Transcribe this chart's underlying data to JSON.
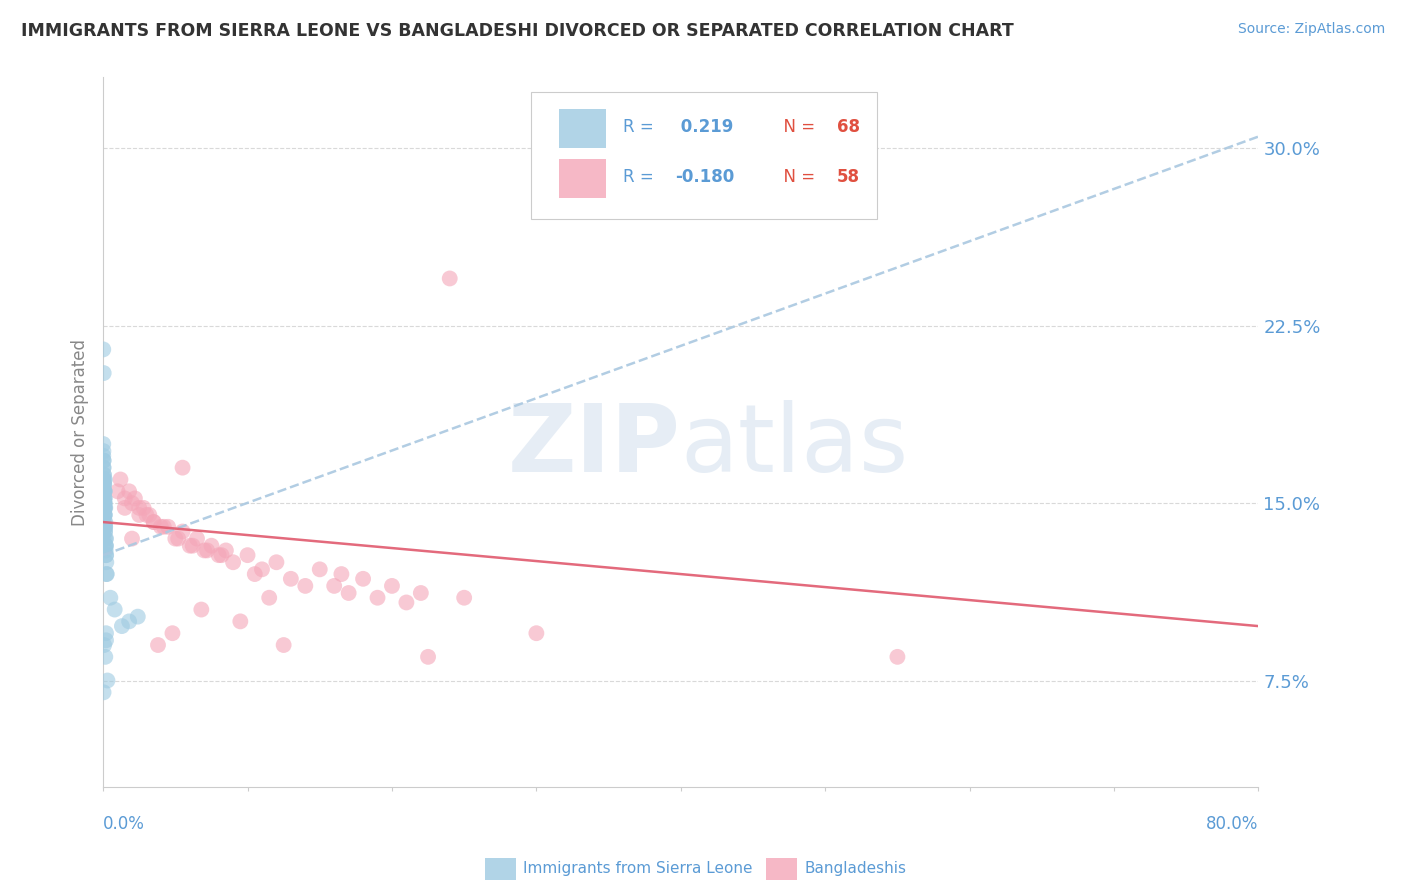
{
  "title": "IMMIGRANTS FROM SIERRA LEONE VS BANGLADESHI DIVORCED OR SEPARATED CORRELATION CHART",
  "source": "Source: ZipAtlas.com",
  "ylabel": "Divorced or Separated",
  "xlim": [
    0.0,
    80.0
  ],
  "ylim": [
    3.0,
    33.0
  ],
  "yticks": [
    7.5,
    15.0,
    22.5,
    30.0
  ],
  "ytick_labels": [
    "7.5%",
    "15.0%",
    "22.5%",
    "30.0%"
  ],
  "watermark_zip": "ZIP",
  "watermark_atlas": "atlas",
  "legend_r1_label": "R = ",
  "legend_r1_val": " 0.219",
  "legend_n1_label": "N = ",
  "legend_n1_val": "68",
  "legend_r2_label": "R = ",
  "legend_r2_val": "-0.180",
  "legend_n2_label": "N = ",
  "legend_n2_val": "58",
  "blue_color": "#9ecae1",
  "pink_color": "#f4a6b8",
  "blue_line_color": "#9ecae1",
  "pink_line_color": "#e05a6e",
  "title_color": "#333333",
  "axis_label_color": "#5b9bd5",
  "grid_color": "#d0d0d0",
  "blue_scatter_x": [
    0.1,
    0.15,
    0.2,
    0.05,
    0.08,
    0.1,
    0.13,
    0.03,
    0.06,
    0.09,
    0.11,
    0.02,
    0.04,
    0.07,
    0.14,
    0.16,
    0.18,
    0.22,
    0.25,
    0.01,
    0.03,
    0.05,
    0.08,
    0.1,
    0.12,
    0.15,
    0.2,
    0.04,
    0.06,
    0.09,
    0.11,
    0.02,
    0.03,
    0.07,
    0.13,
    0.17,
    0.23,
    0.01,
    0.05,
    0.08,
    0.1,
    0.12,
    0.14,
    0.19,
    0.03,
    0.06,
    0.09,
    0.11,
    0.04,
    0.07,
    0.16,
    0.21,
    0.2,
    0.5,
    0.8,
    1.3,
    1.8,
    2.4,
    0.01,
    0.04,
    0.07,
    0.1,
    0.15,
    0.2,
    0.3,
    0.12,
    0.06,
    0.03
  ],
  "blue_scatter_y": [
    15.5,
    14.8,
    13.5,
    16.2,
    15.0,
    14.5,
    13.8,
    16.8,
    15.8,
    14.2,
    15.2,
    16.5,
    15.5,
    14.8,
    14.0,
    13.5,
    13.0,
    12.5,
    12.0,
    17.0,
    16.8,
    16.2,
    15.8,
    15.2,
    14.8,
    14.2,
    13.2,
    16.0,
    15.5,
    14.5,
    15.0,
    17.2,
    16.5,
    14.8,
    13.8,
    13.2,
    12.0,
    17.5,
    16.0,
    15.5,
    15.0,
    14.5,
    14.0,
    12.8,
    13.5,
    15.2,
    14.8,
    15.5,
    15.8,
    14.5,
    13.2,
    12.8,
    9.5,
    11.0,
    10.5,
    9.8,
    10.0,
    10.2,
    21.5,
    20.5,
    9.0,
    14.0,
    8.5,
    9.2,
    7.5,
    16.0,
    15.0,
    7.0
  ],
  "pink_scatter_x": [
    1.5,
    2.5,
    3.5,
    4.5,
    5.5,
    6.5,
    7.5,
    8.5,
    10.0,
    12.0,
    15.0,
    18.0,
    20.0,
    22.0,
    25.0,
    1.0,
    1.5,
    2.0,
    2.5,
    3.0,
    3.5,
    4.0,
    5.0,
    6.0,
    7.0,
    8.0,
    9.0,
    11.0,
    13.0,
    16.0,
    19.0,
    1.2,
    1.8,
    2.2,
    2.8,
    3.2,
    4.2,
    5.2,
    6.2,
    7.2,
    8.2,
    10.5,
    14.0,
    17.0,
    21.0,
    30.0,
    55.0,
    2.0,
    3.8,
    4.8,
    6.8,
    9.5,
    11.5,
    16.5,
    24.0,
    12.5,
    22.5,
    5.5
  ],
  "pink_scatter_y": [
    14.8,
    14.5,
    14.2,
    14.0,
    13.8,
    13.5,
    13.2,
    13.0,
    12.8,
    12.5,
    12.2,
    11.8,
    11.5,
    11.2,
    11.0,
    15.5,
    15.2,
    15.0,
    14.8,
    14.5,
    14.2,
    14.0,
    13.5,
    13.2,
    13.0,
    12.8,
    12.5,
    12.2,
    11.8,
    11.5,
    11.0,
    16.0,
    15.5,
    15.2,
    14.8,
    14.5,
    14.0,
    13.5,
    13.2,
    13.0,
    12.8,
    12.0,
    11.5,
    11.2,
    10.8,
    9.5,
    8.5,
    13.5,
    9.0,
    9.5,
    10.5,
    10.0,
    11.0,
    12.0,
    24.5,
    9.0,
    8.5,
    16.5
  ],
  "blue_trend_x0": 0.0,
  "blue_trend_y0": 12.8,
  "blue_trend_x1": 80.0,
  "blue_trend_y1": 30.5,
  "pink_trend_x0": 0.0,
  "pink_trend_y0": 14.2,
  "pink_trend_x1": 80.0,
  "pink_trend_y1": 9.8,
  "legend_blue_label": "Immigrants from Sierra Leone",
  "legend_pink_label": "Bangladeshis"
}
